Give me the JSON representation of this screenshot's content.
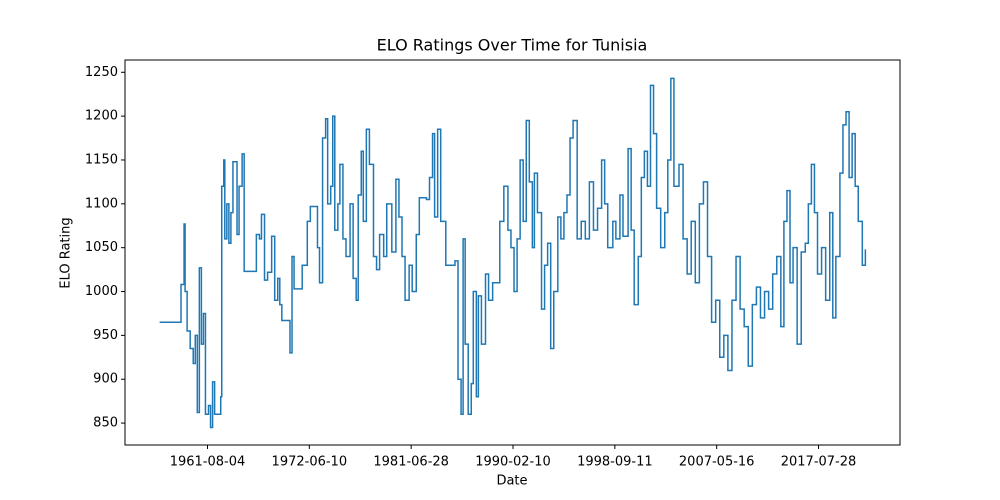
{
  "chart_data": {
    "type": "line",
    "title": "ELO Ratings Over Time for Tunisia",
    "xlabel": "Date",
    "ylabel": "ELO Rating",
    "color": "#1f77b4",
    "drawstyle": "steps-post",
    "grid": false,
    "x": [
      0,
      21,
      24,
      25,
      27,
      30,
      33,
      35,
      37,
      39,
      41,
      43,
      45,
      48,
      50,
      52,
      54,
      60,
      61,
      63,
      64,
      66,
      68,
      70,
      72,
      76,
      78,
      81,
      83,
      95,
      98,
      100,
      103,
      106,
      110,
      113,
      116,
      118,
      120,
      128,
      130,
      132,
      140,
      145,
      148,
      155,
      157,
      160,
      163,
      165,
      168,
      170,
      172,
      175,
      177,
      180,
      183,
      187,
      190,
      193,
      195,
      198,
      200,
      203,
      206,
      210,
      213,
      216,
      220,
      223,
      228,
      232,
      235,
      238,
      241,
      245,
      248,
      252,
      255,
      262,
      265,
      268,
      270,
      273,
      276,
      281,
      290,
      293,
      296,
      298,
      300,
      303,
      306,
      308,
      311,
      313,
      316,
      320,
      323,
      327,
      330,
      334,
      338,
      342,
      345,
      348,
      351,
      354,
      357,
      360,
      363,
      366,
      368,
      371,
      375,
      378,
      381,
      384,
      387,
      391,
      394,
      397,
      400,
      403,
      406,
      410,
      414,
      418,
      422,
      426,
      430,
      434,
      437,
      440,
      445,
      448,
      452,
      455,
      460,
      463,
      466,
      470,
      473,
      476,
      479,
      482,
      485,
      488,
      492,
      496,
      499,
      502,
      505,
      510,
      514,
      518,
      522,
      526,
      530,
      534,
      538,
      542,
      546,
      550,
      554,
      558,
      562,
      566,
      570,
      574,
      578,
      582,
      586,
      590,
      594,
      598,
      602,
      606,
      610,
      613,
      616,
      619,
      622,
      626,
      630,
      634,
      637,
      640,
      643,
      646,
      650,
      654,
      658,
      661,
      664,
      668,
      671,
      674,
      677,
      680,
      683,
      686,
      690,
      693
    ],
    "values": [
      965,
      1008,
      1077,
      1000,
      955,
      935,
      918,
      950,
      862,
      1027,
      940,
      975,
      860,
      870,
      845,
      897,
      860,
      880,
      1120,
      1150,
      1060,
      1100,
      1055,
      1090,
      1148,
      1065,
      1120,
      1157,
      1023,
      1065,
      1060,
      1088,
      1013,
      1022,
      1063,
      990,
      1015,
      985,
      967,
      930,
      1040,
      1003,
      1030,
      1080,
      1097,
      1050,
      1010,
      1175,
      1197,
      1100,
      1120,
      1200,
      1070,
      1100,
      1145,
      1060,
      1040,
      1100,
      1015,
      990,
      1110,
      1160,
      1080,
      1185,
      1145,
      1040,
      1025,
      1065,
      1040,
      1100,
      1045,
      1128,
      1085,
      1040,
      990,
      1030,
      1000,
      1065,
      1107,
      1105,
      1130,
      1180,
      1085,
      1185,
      1080,
      1030,
      1035,
      900,
      860,
      1060,
      940,
      860,
      895,
      1000,
      880,
      995,
      940,
      1020,
      990,
      1010,
      1010,
      1080,
      1120,
      1070,
      1050,
      1000,
      1060,
      1150,
      1080,
      1195,
      1125,
      1050,
      1135,
      1090,
      980,
      1030,
      1055,
      935,
      1000,
      1085,
      1060,
      1090,
      1110,
      1175,
      1195,
      1060,
      1080,
      1060,
      1125,
      1070,
      1095,
      1150,
      1100,
      1050,
      1080,
      1060,
      1110,
      1063,
      1163,
      1070,
      985,
      1040,
      1130,
      1160,
      1120,
      1235,
      1180,
      1095,
      1050,
      1090,
      1150,
      1243,
      1120,
      1145,
      1060,
      1020,
      1080,
      1010,
      1100,
      1125,
      1040,
      965,
      990,
      925,
      950,
      910,
      990,
      1040,
      980,
      960,
      915,
      985,
      1005,
      970,
      1000,
      980,
      1020,
      1040,
      960,
      1080,
      1115,
      1010,
      1050,
      940,
      1045,
      1055,
      1100,
      1145,
      1090,
      1020,
      1050,
      990,
      1090,
      970,
      1040,
      1135,
      1190,
      1205,
      1130,
      1180,
      1120,
      1080,
      1030,
      1048
    ],
    "xlim": [
      -34,
      727
    ],
    "xticks": [
      {
        "value": 47,
        "label": "1961-08-04"
      },
      {
        "value": 147,
        "label": "1972-06-10"
      },
      {
        "value": 247,
        "label": "1981-06-28"
      },
      {
        "value": 347,
        "label": "1990-02-10"
      },
      {
        "value": 447,
        "label": "1998-09-11"
      },
      {
        "value": 547,
        "label": "2007-05-16"
      },
      {
        "value": 647,
        "label": "2017-07-28"
      }
    ],
    "ylim": [
      825,
      1264
    ],
    "yticks": [
      850,
      900,
      950,
      1000,
      1050,
      1100,
      1150,
      1200,
      1250
    ]
  }
}
